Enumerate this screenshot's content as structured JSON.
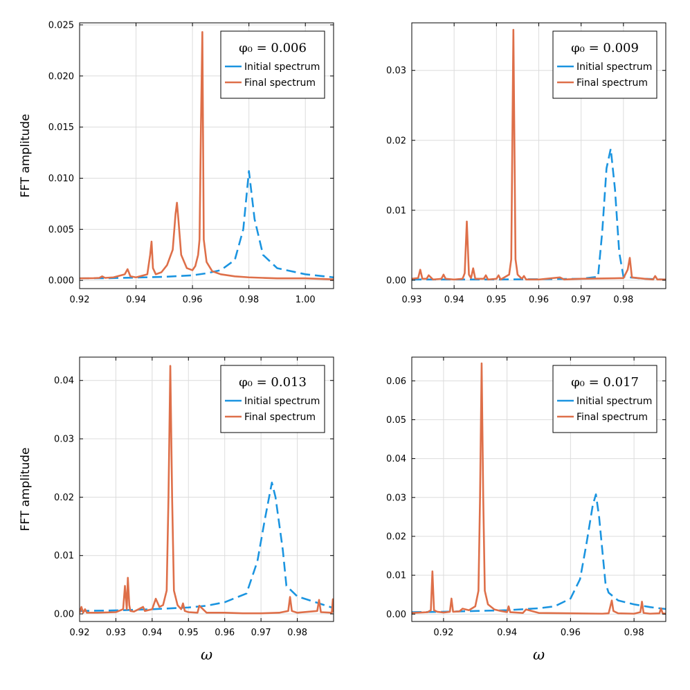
{
  "colors": {
    "initial": "#1a94e0",
    "final": "#de6f49",
    "grid": "#dcdcdc",
    "frame": "#000000"
  },
  "chart_data": [
    {
      "type": "line",
      "title": "",
      "legend_title": "φ₀ = 0.006",
      "legend_position": "top-right",
      "xlabel": "",
      "ylabel": "FFT amplitude",
      "xlim": [
        0.92,
        1.01
      ],
      "ylim": [
        -0.0008,
        0.0252
      ],
      "xticks": [
        0.92,
        0.94,
        0.96,
        0.98,
        1.0
      ],
      "xtick_labels": [
        "0.92",
        "0.94",
        "0.96",
        "0.98",
        "1.00"
      ],
      "yticks": [
        0.0,
        0.005,
        0.01,
        0.015,
        0.02,
        0.025
      ],
      "ytick_labels": [
        "0.000",
        "0.005",
        "0.010",
        "0.015",
        "0.020",
        "0.025"
      ],
      "series": [
        {
          "name": "Initial spectrum",
          "style": "dashed",
          "x": [
            0.92,
            0.93,
            0.94,
            0.95,
            0.96,
            0.965,
            0.97,
            0.975,
            0.978,
            0.98,
            0.982,
            0.985,
            0.99,
            1.0,
            1.01
          ],
          "y": [
            0.0002,
            0.00022,
            0.00028,
            0.00035,
            0.0005,
            0.0007,
            0.001,
            0.002,
            0.005,
            0.0107,
            0.006,
            0.0025,
            0.0012,
            0.0006,
            0.0003
          ]
        },
        {
          "name": "Final spectrum",
          "style": "solid",
          "x": [
            0.92,
            0.925,
            0.927,
            0.928,
            0.929,
            0.932,
            0.936,
            0.937,
            0.938,
            0.94,
            0.944,
            0.945,
            0.9455,
            0.946,
            0.947,
            0.949,
            0.951,
            0.953,
            0.954,
            0.9545,
            0.955,
            0.956,
            0.958,
            0.96,
            0.961,
            0.962,
            0.9625,
            0.963,
            0.9635,
            0.964,
            0.965,
            0.967,
            0.97,
            0.975,
            0.98,
            0.985,
            0.99,
            1.0,
            1.01
          ],
          "y": [
            0.0002,
            0.00022,
            0.00025,
            0.0004,
            0.00025,
            0.0003,
            0.0006,
            0.0011,
            0.0004,
            0.0003,
            0.0006,
            0.0025,
            0.0038,
            0.0012,
            0.0006,
            0.0008,
            0.0015,
            0.003,
            0.0065,
            0.0076,
            0.006,
            0.0025,
            0.0012,
            0.001,
            0.0014,
            0.0025,
            0.004,
            0.015,
            0.0243,
            0.004,
            0.0018,
            0.0009,
            0.0006,
            0.0004,
            0.0003,
            0.00025,
            0.0002,
            0.0002,
            0.0001
          ]
        }
      ]
    },
    {
      "type": "line",
      "title": "",
      "legend_title": "φ₀ = 0.009",
      "legend_position": "top-right",
      "xlabel": "",
      "ylabel": "",
      "xlim": [
        0.93,
        0.99
      ],
      "ylim": [
        -0.0012,
        0.0368
      ],
      "xticks": [
        0.93,
        0.94,
        0.95,
        0.96,
        0.97,
        0.98
      ],
      "xtick_labels": [
        "0.93",
        "0.94",
        "0.95",
        "0.96",
        "0.97",
        "0.98"
      ],
      "yticks": [
        0.0,
        0.01,
        0.02,
        0.03
      ],
      "ytick_labels": [
        "0.00",
        "0.01",
        "0.02",
        "0.03"
      ],
      "series": [
        {
          "name": "Initial spectrum",
          "style": "dashed",
          "x": [
            0.93,
            0.95,
            0.97,
            0.974,
            0.975,
            0.976,
            0.977,
            0.978,
            0.979,
            0.98,
            0.985,
            0.99
          ],
          "y": [
            0.0001,
            0.0001,
            0.0002,
            0.0005,
            0.007,
            0.016,
            0.0188,
            0.013,
            0.004,
            0.0005,
            0.0002,
            0.0001
          ]
        },
        {
          "name": "Final spectrum",
          "style": "solid",
          "x": [
            0.93,
            0.9315,
            0.932,
            0.9325,
            0.9335,
            0.934,
            0.935,
            0.937,
            0.9375,
            0.938,
            0.94,
            0.942,
            0.9425,
            0.943,
            0.9435,
            0.944,
            0.9445,
            0.945,
            0.947,
            0.9475,
            0.948,
            0.95,
            0.9505,
            0.951,
            0.953,
            0.9535,
            0.954,
            0.9545,
            0.955,
            0.956,
            0.9565,
            0.957,
            0.96,
            0.965,
            0.966,
            0.97,
            0.98,
            0.981,
            0.9815,
            0.982,
            0.985,
            0.987,
            0.9875,
            0.988,
            0.99
          ],
          "y": [
            0.0002,
            0.0003,
            0.0015,
            0.0002,
            0.0002,
            0.0007,
            0.0001,
            0.0002,
            0.0008,
            0.0002,
            0.0001,
            0.0002,
            0.001,
            0.0084,
            0.0008,
            0.0003,
            0.0017,
            0.0002,
            0.0002,
            0.0007,
            0.0001,
            0.0002,
            0.0007,
            0.0001,
            0.0008,
            0.003,
            0.0358,
            0.003,
            0.0008,
            0.0002,
            0.0006,
            0.0001,
            0.0001,
            0.0004,
            0.0001,
            0.0002,
            0.0003,
            0.0015,
            0.0032,
            0.0004,
            0.0002,
            0.0001,
            0.0006,
            0.0001,
            0.0001
          ]
        }
      ]
    },
    {
      "type": "line",
      "title": "",
      "legend_title": "φ₀ = 0.013",
      "legend_position": "top-right",
      "xlabel": "ω",
      "ylabel": "FFT amplitude",
      "xlim": [
        0.92,
        0.99
      ],
      "ylim": [
        -0.0013,
        0.044
      ],
      "xticks": [
        0.92,
        0.93,
        0.94,
        0.95,
        0.96,
        0.97,
        0.98
      ],
      "xtick_labels": [
        "0.92",
        "0.93",
        "0.94",
        "0.95",
        "0.96",
        "0.97",
        "0.98"
      ],
      "yticks": [
        0.0,
        0.01,
        0.02,
        0.03,
        0.04
      ],
      "ytick_labels": [
        "0.00",
        "0.01",
        "0.02",
        "0.03",
        "0.04"
      ],
      "series": [
        {
          "name": "Initial spectrum",
          "style": "dashed",
          "x": [
            0.92,
            0.93,
            0.94,
            0.95,
            0.955,
            0.96,
            0.966,
            0.969,
            0.971,
            0.973,
            0.974,
            0.976,
            0.977,
            0.98,
            0.985,
            0.99
          ],
          "y": [
            0.0005,
            0.0006,
            0.0008,
            0.0011,
            0.0014,
            0.002,
            0.0035,
            0.009,
            0.016,
            0.0225,
            0.02,
            0.011,
            0.0048,
            0.003,
            0.002,
            0.001
          ]
        },
        {
          "name": "Final spectrum",
          "style": "solid",
          "x": [
            0.92,
            0.9205,
            0.921,
            0.9215,
            0.922,
            0.925,
            0.93,
            0.932,
            0.9325,
            0.933,
            0.9333,
            0.9337,
            0.934,
            0.935,
            0.9375,
            0.938,
            0.94,
            0.941,
            0.942,
            0.943,
            0.944,
            0.9445,
            0.945,
            0.9455,
            0.946,
            0.947,
            0.948,
            0.9485,
            0.949,
            0.95,
            0.9525,
            0.953,
            0.955,
            0.96,
            0.965,
            0.97,
            0.975,
            0.9775,
            0.978,
            0.9785,
            0.98,
            0.9855,
            0.986,
            0.9865,
            0.9895,
            0.9898,
            0.99
          ],
          "y": [
            0.0002,
            0.0012,
            0.0002,
            0.0008,
            0.0002,
            0.0002,
            0.0003,
            0.0008,
            0.0048,
            0.0008,
            0.0062,
            0.0015,
            0.0005,
            0.0004,
            0.0012,
            0.0005,
            0.0008,
            0.0026,
            0.0012,
            0.0015,
            0.004,
            0.02,
            0.0425,
            0.02,
            0.004,
            0.0015,
            0.0008,
            0.0018,
            0.0005,
            0.0003,
            0.0002,
            0.0014,
            0.0002,
            0.0002,
            0.0001,
            0.0001,
            0.0002,
            0.0005,
            0.0029,
            0.0005,
            0.0002,
            0.0005,
            0.0024,
            0.0003,
            0.0002,
            0.0025,
            0.0003
          ]
        }
      ]
    },
    {
      "type": "line",
      "title": "",
      "legend_title": "φ₀ = 0.017",
      "legend_position": "top-right",
      "xlabel": "ω",
      "ylabel": "",
      "xlim": [
        0.91,
        0.99
      ],
      "ylim": [
        -0.0019,
        0.0661
      ],
      "xticks": [
        0.92,
        0.94,
        0.96,
        0.98
      ],
      "xtick_labels": [
        "0.92",
        "0.94",
        "0.96",
        "0.98"
      ],
      "yticks": [
        0.0,
        0.01,
        0.02,
        0.03,
        0.04,
        0.05,
        0.06
      ],
      "ytick_labels": [
        "0.00",
        "0.01",
        "0.02",
        "0.03",
        "0.04",
        "0.05",
        "0.06"
      ],
      "series": [
        {
          "name": "Initial spectrum",
          "style": "dashed",
          "x": [
            0.91,
            0.92,
            0.93,
            0.94,
            0.95,
            0.955,
            0.96,
            0.963,
            0.965,
            0.967,
            0.968,
            0.969,
            0.971,
            0.972,
            0.975,
            0.98,
            0.985,
            0.99
          ],
          "y": [
            0.0005,
            0.0006,
            0.0008,
            0.001,
            0.0015,
            0.002,
            0.004,
            0.009,
            0.018,
            0.028,
            0.0308,
            0.025,
            0.008,
            0.0055,
            0.0035,
            0.0025,
            0.0018,
            0.0013
          ]
        },
        {
          "name": "Final spectrum",
          "style": "solid",
          "x": [
            0.91,
            0.915,
            0.916,
            0.9165,
            0.917,
            0.918,
            0.92,
            0.922,
            0.9225,
            0.923,
            0.925,
            0.926,
            0.928,
            0.93,
            0.931,
            0.9315,
            0.932,
            0.9325,
            0.933,
            0.934,
            0.936,
            0.938,
            0.94,
            0.9405,
            0.941,
            0.945,
            0.946,
            0.95,
            0.96,
            0.97,
            0.972,
            0.973,
            0.9735,
            0.975,
            0.98,
            0.982,
            0.9825,
            0.983,
            0.985,
            0.988,
            0.9885,
            0.989,
            0.99
          ],
          "y": [
            0.0003,
            0.0005,
            0.001,
            0.011,
            0.001,
            0.0006,
            0.0004,
            0.0006,
            0.004,
            0.0006,
            0.0007,
            0.0014,
            0.001,
            0.002,
            0.006,
            0.03,
            0.0645,
            0.03,
            0.006,
            0.0025,
            0.0012,
            0.0008,
            0.0005,
            0.002,
            0.0005,
            0.0003,
            0.0012,
            0.0003,
            0.0002,
            0.0001,
            0.0002,
            0.0035,
            0.0008,
            0.0002,
            0.0001,
            0.0005,
            0.0032,
            0.0003,
            0.0001,
            0.0002,
            0.0015,
            0.0002,
            0.0001
          ]
        }
      ]
    }
  ]
}
